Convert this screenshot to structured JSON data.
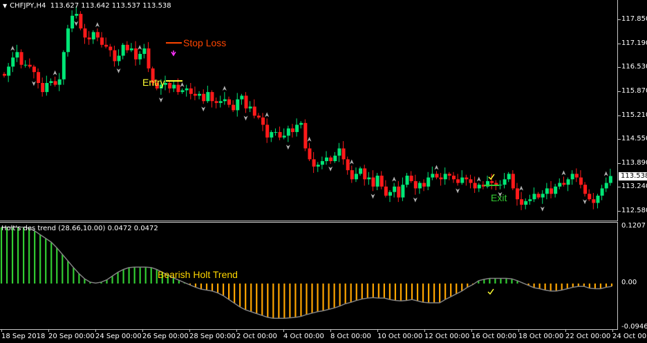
{
  "header": {
    "symbol_tf": "CHFJPY,H4",
    "ohlc": "113.627 113.642 113.537 113.538"
  },
  "indicator": {
    "title": "Holt's des trend (28.66,10.00) 0.0472 0.0472"
  },
  "annotations": {
    "stop_loss": "Stop Loss",
    "entry": "Entry",
    "exit": "Exit",
    "bearish_trend": "Bearish Holt Trend"
  },
  "colors": {
    "bull": "#00e676",
    "bear": "#ff1a1a",
    "stop_loss": "#ff4500",
    "entry": "#ffff33",
    "exit": "#33cc33",
    "hist_bull": "#32cd32",
    "hist_bear": "#ffa500",
    "line": "#808080"
  },
  "price_axis": {
    "labels": [
      "117.850",
      "117.190",
      "116.530",
      "115.870",
      "115.210",
      "114.550",
      "113.890",
      "113.240",
      "112.580"
    ],
    "current": "113.538"
  },
  "indicator_axis": {
    "labels": [
      "0.1207",
      "0.00",
      "-0.0946"
    ]
  },
  "time_axis": {
    "labels": [
      "18 Sep 2018",
      "20 Sep 00:00",
      "24 Sep 00:00",
      "26 Sep 00:00",
      "28 Sep 00:00",
      "2 Oct 00:00",
      "4 Oct 00:00",
      "8 Oct 00:00",
      "10 Oct 00:00",
      "12 Oct 00:00",
      "16 Oct 00:00",
      "18 Oct 00:00",
      "22 Oct 00:00",
      "24 Oct 00:00"
    ]
  },
  "chart_data": [
    {
      "type": "candlestick",
      "title": "CHFJPY,H4",
      "ylim": [
        112.35,
        118.2
      ],
      "y_ticks": [
        117.85,
        117.19,
        116.53,
        115.87,
        115.21,
        114.55,
        113.89,
        113.24,
        112.58
      ],
      "current_price": 113.538,
      "close_path": [
        116.3,
        116.55,
        116.8,
        116.95,
        116.6,
        116.6,
        116.55,
        116.4,
        116.1,
        115.85,
        116.1,
        116.15,
        116.05,
        116.2,
        116.95,
        117.6,
        117.95,
        118.0,
        117.6,
        117.35,
        117.3,
        117.5,
        117.35,
        117.15,
        117.1,
        117.0,
        116.7,
        116.85,
        117.15,
        117.0,
        117.05,
        116.75,
        116.9,
        117.05,
        116.5,
        116.1,
        115.95,
        116.05,
        116.1,
        115.95,
        116.05,
        115.85,
        115.9,
        115.95,
        115.8,
        115.75,
        115.8,
        115.6,
        115.85,
        115.6,
        115.55,
        115.6,
        115.65,
        115.5,
        115.35,
        115.65,
        115.75,
        115.4,
        115.45,
        115.2,
        115.15,
        114.95,
        114.6,
        114.75,
        114.75,
        114.6,
        114.65,
        114.85,
        114.75,
        114.95,
        115.0,
        114.3,
        114.0,
        113.8,
        113.85,
        113.95,
        114.05,
        113.95,
        114.1,
        114.3,
        114.0,
        113.7,
        113.45,
        113.6,
        113.75,
        113.45,
        113.5,
        113.25,
        113.55,
        113.25,
        113.0,
        113.1,
        113.25,
        112.95,
        113.3,
        113.55,
        113.4,
        113.2,
        113.35,
        113.25,
        113.5,
        113.6,
        113.5,
        113.45,
        113.6,
        113.55,
        113.45,
        113.35,
        113.5,
        113.45,
        113.35,
        113.2,
        113.3,
        113.25,
        113.4,
        113.35,
        113.3,
        113.3,
        113.45,
        113.6,
        113.2,
        112.9,
        112.75,
        112.85,
        112.9,
        113.05,
        112.95,
        113.05,
        113.2,
        113.05,
        113.25,
        113.35,
        113.3,
        113.45,
        113.6,
        113.5,
        113.3,
        113.05,
        112.9,
        112.8,
        113.0,
        113.2,
        113.35,
        113.54
      ],
      "annotations": [
        "Stop Loss",
        "Entry",
        "Exit"
      ]
    },
    {
      "type": "histogram",
      "title": "Holt's des trend (28.66,10.00) 0.0472 0.0472",
      "ylim": [
        -0.0946,
        0.1207
      ],
      "values": [
        0.12,
        0.12,
        0.12,
        0.12,
        0.12,
        0.118,
        0.112,
        0.104,
        0.096,
        0.088,
        0.076,
        0.062,
        0.048,
        0.034,
        0.021,
        0.01,
        0.003,
        0.001,
        0.003,
        0.008,
        0.016,
        0.024,
        0.03,
        0.034,
        0.035,
        0.035,
        0.035,
        0.034,
        0.03,
        0.024,
        0.018,
        0.012,
        0.007,
        0.002,
        -0.003,
        -0.008,
        -0.012,
        -0.014,
        -0.016,
        -0.02,
        -0.026,
        -0.034,
        -0.042,
        -0.05,
        -0.056,
        -0.06,
        -0.064,
        -0.068,
        -0.072,
        -0.074,
        -0.074,
        -0.074,
        -0.073,
        -0.072,
        -0.07,
        -0.066,
        -0.063,
        -0.06,
        -0.058,
        -0.055,
        -0.052,
        -0.048,
        -0.043,
        -0.04,
        -0.036,
        -0.033,
        -0.031,
        -0.03,
        -0.031,
        -0.031,
        -0.034,
        -0.036,
        -0.037,
        -0.036,
        -0.034,
        -0.037,
        -0.04,
        -0.041,
        -0.041,
        -0.041,
        -0.034,
        -0.028,
        -0.022,
        -0.016,
        -0.008,
        -0.002,
        0.006,
        0.009,
        0.011,
        0.011,
        0.011,
        0.011,
        0.01,
        0.006,
        0.001,
        -0.004,
        -0.009,
        -0.011,
        -0.014,
        -0.016,
        -0.016,
        -0.014,
        -0.011,
        -0.008,
        -0.006,
        -0.006,
        -0.01,
        -0.011,
        -0.011,
        -0.008,
        -0.006
      ],
      "annotations": [
        "Bearish Holt Trend"
      ]
    }
  ]
}
